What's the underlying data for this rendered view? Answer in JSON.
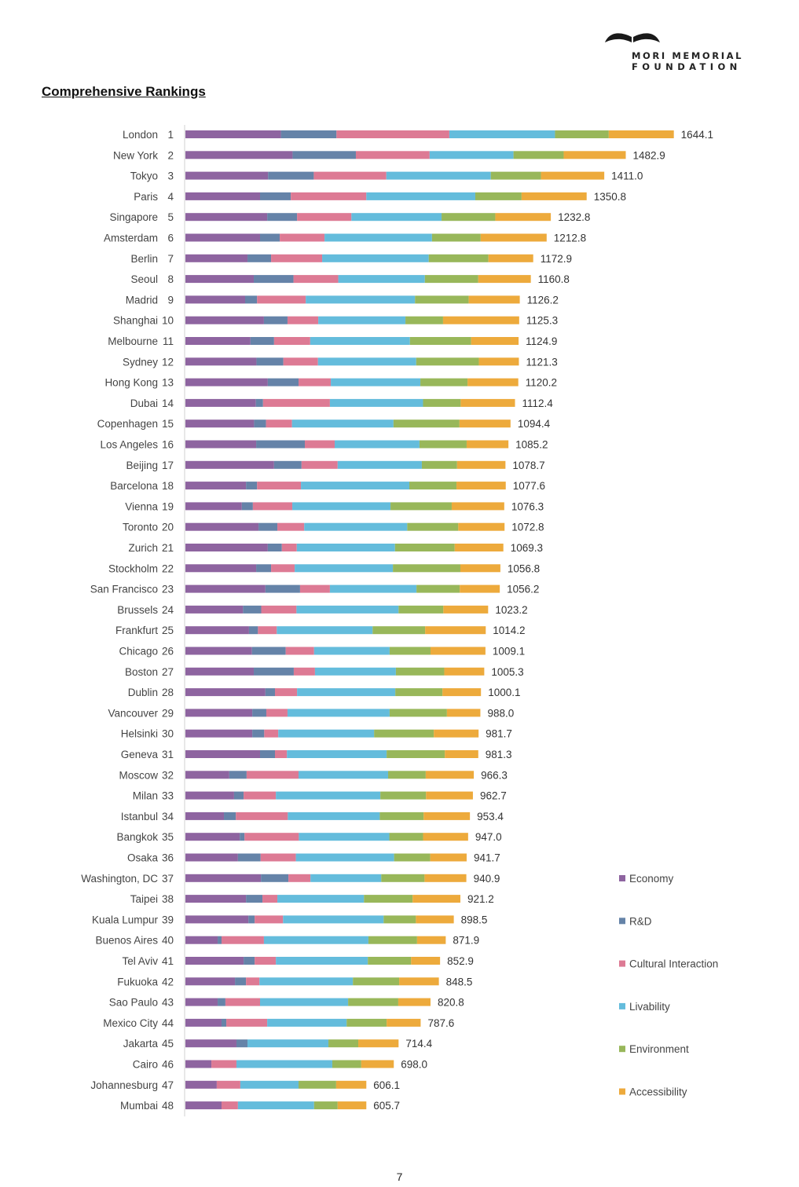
{
  "header": {
    "logo_line1": "MORI MEMORIAL",
    "logo_line2": "FOUNDATION"
  },
  "section_title": "Comprehensive Rankings",
  "page_number": "7",
  "colors": {
    "Economy": "#8e64a0",
    "R&D": "#6583a8",
    "Cultural Interaction": "#dd7a94",
    "Livability": "#64bcdc",
    "Environment": "#98b75a",
    "Accessibility": "#edaa3c"
  },
  "chart_data": {
    "type": "bar",
    "orientation": "horizontal",
    "stacked": true,
    "title": "Comprehensive Rankings",
    "legend_position": "right",
    "legend": [
      "Economy",
      "R&D",
      "Cultural Interaction",
      "Livability",
      "Environment",
      "Accessibility"
    ],
    "categories": [
      {
        "city": "London",
        "rank": "1",
        "total": "1644.1",
        "components": [
          320,
          186,
          378,
          354,
          180,
          218
        ]
      },
      {
        "city": "New York",
        "rank": "2",
        "total": "1482.9",
        "components": [
          359,
          212,
          247,
          281,
          168,
          208
        ]
      },
      {
        "city": "Tokyo",
        "rank": "3",
        "total": "1411.0",
        "components": [
          277,
          153,
          243,
          350,
          168,
          212
        ]
      },
      {
        "city": "Paris",
        "rank": "4",
        "total": "1350.8",
        "components": [
          250,
          103,
          253,
          365,
          155,
          218
        ]
      },
      {
        "city": "Singapore",
        "rank": "5",
        "total": "1232.8",
        "components": [
          274,
          100,
          182,
          302,
          180,
          186
        ]
      },
      {
        "city": "Amsterdam",
        "rank": "6",
        "total": "1212.8",
        "components": [
          250,
          66,
          150,
          360,
          163,
          221
        ]
      },
      {
        "city": "Berlin",
        "rank": "7",
        "total": "1172.9",
        "components": [
          208,
          79,
          171,
          357,
          200,
          150
        ]
      },
      {
        "city": "Seoul",
        "rank": "8",
        "total": "1160.8",
        "components": [
          229,
          133,
          150,
          290,
          179,
          176
        ]
      },
      {
        "city": "Madrid",
        "rank": "9",
        "total": "1126.2",
        "components": [
          200,
          40,
          163,
          366,
          180,
          171
        ]
      },
      {
        "city": "Shanghai",
        "rank": "10",
        "total": "1125.3",
        "components": [
          263,
          79,
          103,
          292,
          126,
          255
        ]
      },
      {
        "city": "Melbourne",
        "rank": "11",
        "total": "1124.9",
        "components": [
          218,
          79,
          121,
          334,
          205,
          159
        ]
      },
      {
        "city": "Sydney",
        "rank": "12",
        "total": "1121.3",
        "components": [
          238,
          90,
          116,
          329,
          210,
          134
        ]
      },
      {
        "city": "Hong Kong",
        "rank": "13",
        "total": "1120.2",
        "components": [
          276,
          103,
          108,
          300,
          158,
          170
        ]
      },
      {
        "city": "Dubai",
        "rank": "14",
        "total": "1112.4",
        "components": [
          236,
          24,
          224,
          312,
          126,
          182
        ]
      },
      {
        "city": "Copenhagen",
        "rank": "15",
        "total": "1094.4",
        "components": [
          230,
          40,
          87,
          340,
          221,
          171
        ]
      },
      {
        "city": "Los Angeles",
        "rank": "16",
        "total": "1085.2",
        "components": [
          237,
          163,
          100,
          284,
          158,
          140
        ]
      },
      {
        "city": "Beijing",
        "rank": "17",
        "total": "1078.7",
        "components": [
          297,
          92,
          121,
          282,
          118,
          162
        ]
      },
      {
        "city": "Barcelona",
        "rank": "18",
        "total": "1077.6",
        "components": [
          203,
          37,
          147,
          363,
          158,
          165
        ]
      },
      {
        "city": "Vienna",
        "rank": "19",
        "total": "1076.3",
        "components": [
          189,
          37,
          132,
          329,
          205,
          176
        ]
      },
      {
        "city": "Toronto",
        "rank": "20",
        "total": "1072.8",
        "components": [
          245,
          63,
          90,
          345,
          171,
          155
        ]
      },
      {
        "city": "Zurich",
        "rank": "21",
        "total": "1069.3",
        "components": [
          276,
          47,
          50,
          329,
          200,
          163
        ]
      },
      {
        "city": "Stockholm",
        "rank": "22",
        "total": "1056.8",
        "components": [
          237,
          50,
          79,
          329,
          226,
          134
        ]
      },
      {
        "city": "San Francisco",
        "rank": "23",
        "total": "1056.2",
        "components": [
          268,
          116,
          100,
          290,
          145,
          134
        ]
      },
      {
        "city": "Brussels",
        "rank": "24",
        "total": "1023.2",
        "components": [
          193,
          61,
          118,
          342,
          150,
          150
        ]
      },
      {
        "city": "Frankfurt",
        "rank": "25",
        "total": "1014.2",
        "components": [
          213,
          30,
          63,
          321,
          176,
          203
        ]
      },
      {
        "city": "Chicago",
        "rank": "26",
        "total": "1009.1",
        "components": [
          223,
          113,
          95,
          253,
          137,
          184
        ]
      },
      {
        "city": "Boston",
        "rank": "27",
        "total": "1005.3",
        "components": [
          229,
          134,
          71,
          271,
          162,
          134
        ]
      },
      {
        "city": "Dublin",
        "rank": "28",
        "total": "1000.1",
        "components": [
          268,
          32,
          74,
          329,
          158,
          129
        ]
      },
      {
        "city": "Vancouver",
        "rank": "29",
        "total": "988.0",
        "components": [
          224,
          47,
          71,
          342,
          192,
          112
        ]
      },
      {
        "city": "Helsinki",
        "rank": "30",
        "total": "981.7",
        "components": [
          224,
          40,
          47,
          321,
          200,
          150
        ]
      },
      {
        "city": "Geneva",
        "rank": "31",
        "total": "981.3",
        "components": [
          250,
          50,
          40,
          334,
          195,
          112
        ]
      },
      {
        "city": "Moscow",
        "rank": "32",
        "total": "966.3",
        "components": [
          147,
          58,
          174,
          300,
          126,
          161
        ]
      },
      {
        "city": "Milan",
        "rank": "33",
        "total": "962.7",
        "components": [
          163,
          32,
          108,
          350,
          153,
          157
        ]
      },
      {
        "city": "Istanbul",
        "rank": "34",
        "total": "953.4",
        "components": [
          129,
          40,
          174,
          308,
          147,
          155
        ]
      },
      {
        "city": "Bangkok",
        "rank": "35",
        "total": "947.0",
        "components": [
          182,
          16,
          182,
          303,
          113,
          151
        ]
      },
      {
        "city": "Osaka",
        "rank": "36",
        "total": "941.7",
        "components": [
          176,
          76,
          118,
          329,
          121,
          122
        ]
      },
      {
        "city": "Washington, DC",
        "rank": "37",
        "total": "940.9",
        "components": [
          253,
          92,
          74,
          237,
          145,
          140
        ]
      },
      {
        "city": "Taipei",
        "rank": "38",
        "total": "921.2",
        "components": [
          203,
          55,
          50,
          290,
          163,
          160
        ]
      },
      {
        "city": "Kuala Lumpur",
        "rank": "39",
        "total": "898.5",
        "components": [
          211,
          21,
          95,
          337,
          108,
          127
        ]
      },
      {
        "city": "Buenos Aires",
        "rank": "40",
        "total": "871.9",
        "components": [
          108,
          13,
          142,
          350,
          163,
          96
        ]
      },
      {
        "city": "Tel Aviv",
        "rank": "41",
        "total": "852.9",
        "components": [
          195,
          37,
          71,
          308,
          145,
          97
        ]
      },
      {
        "city": "Fukuoka",
        "rank": "42",
        "total": "848.5",
        "components": [
          166,
          37,
          45,
          313,
          155,
          133
        ]
      },
      {
        "city": "Sao Paulo",
        "rank": "43",
        "total": "820.8",
        "components": [
          108,
          26,
          116,
          295,
          168,
          108
        ]
      },
      {
        "city": "Mexico City",
        "rank": "44",
        "total": "787.6",
        "components": [
          121,
          16,
          137,
          266,
          134,
          114
        ]
      },
      {
        "city": "Jakarta",
        "rank": "45",
        "total": "714.4",
        "components": [
          171,
          37,
          0,
          271,
          100,
          135
        ]
      },
      {
        "city": "Cairo",
        "rank": "46",
        "total": "698.0",
        "components": [
          87,
          0,
          84,
          321,
          97,
          109
        ]
      },
      {
        "city": "Johannesburg",
        "rank": "47",
        "total": "606.1",
        "components": [
          105,
          0,
          79,
          195,
          126,
          101
        ]
      },
      {
        "city": "Mumbai",
        "rank": "48",
        "total": "605.7",
        "components": [
          121,
          0,
          55,
          255,
          79,
          96
        ]
      }
    ]
  }
}
